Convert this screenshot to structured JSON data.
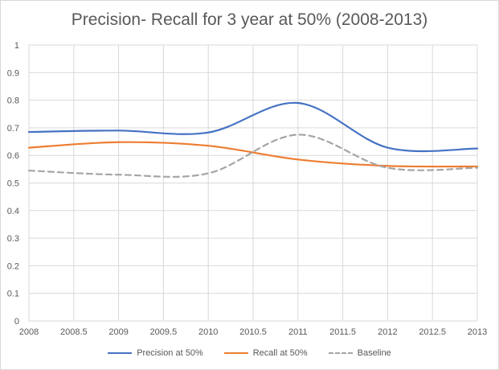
{
  "chart_data": {
    "type": "line",
    "title": "Precision- Recall for 3 year at 50% (2008-2013)",
    "xlabel": "",
    "ylabel": "",
    "xlim": [
      2008,
      2013
    ],
    "ylim": [
      0,
      1
    ],
    "x_ticks": [
      "2008",
      "2008.5",
      "2009",
      "2009.5",
      "2010",
      "2010.5",
      "2011",
      "2011.5",
      "2012",
      "2012.5",
      "2013"
    ],
    "y_ticks": [
      "0",
      "0.1",
      "0.2",
      "0.3",
      "0.4",
      "0.5",
      "0.6",
      "0.7",
      "0.8",
      "0.9",
      "1"
    ],
    "grid": true,
    "legend_position": "bottom",
    "smooth": true,
    "x": [
      2008,
      2009,
      2010,
      2011,
      2012,
      2013
    ],
    "series": [
      {
        "name": "Precision at 50%",
        "values": [
          0.685,
          0.69,
          0.683,
          0.79,
          0.628,
          0.625
        ],
        "color": "#4472c4",
        "style": "solid"
      },
      {
        "name": "Recall at 50%",
        "values": [
          0.628,
          0.648,
          0.635,
          0.585,
          0.562,
          0.56
        ],
        "color": "#ed7d31",
        "style": "solid"
      },
      {
        "name": "Baseline",
        "values": [
          0.545,
          0.53,
          0.535,
          0.675,
          0.555,
          0.555
        ],
        "color": "#a5a5a5",
        "style": "dashed"
      }
    ]
  }
}
